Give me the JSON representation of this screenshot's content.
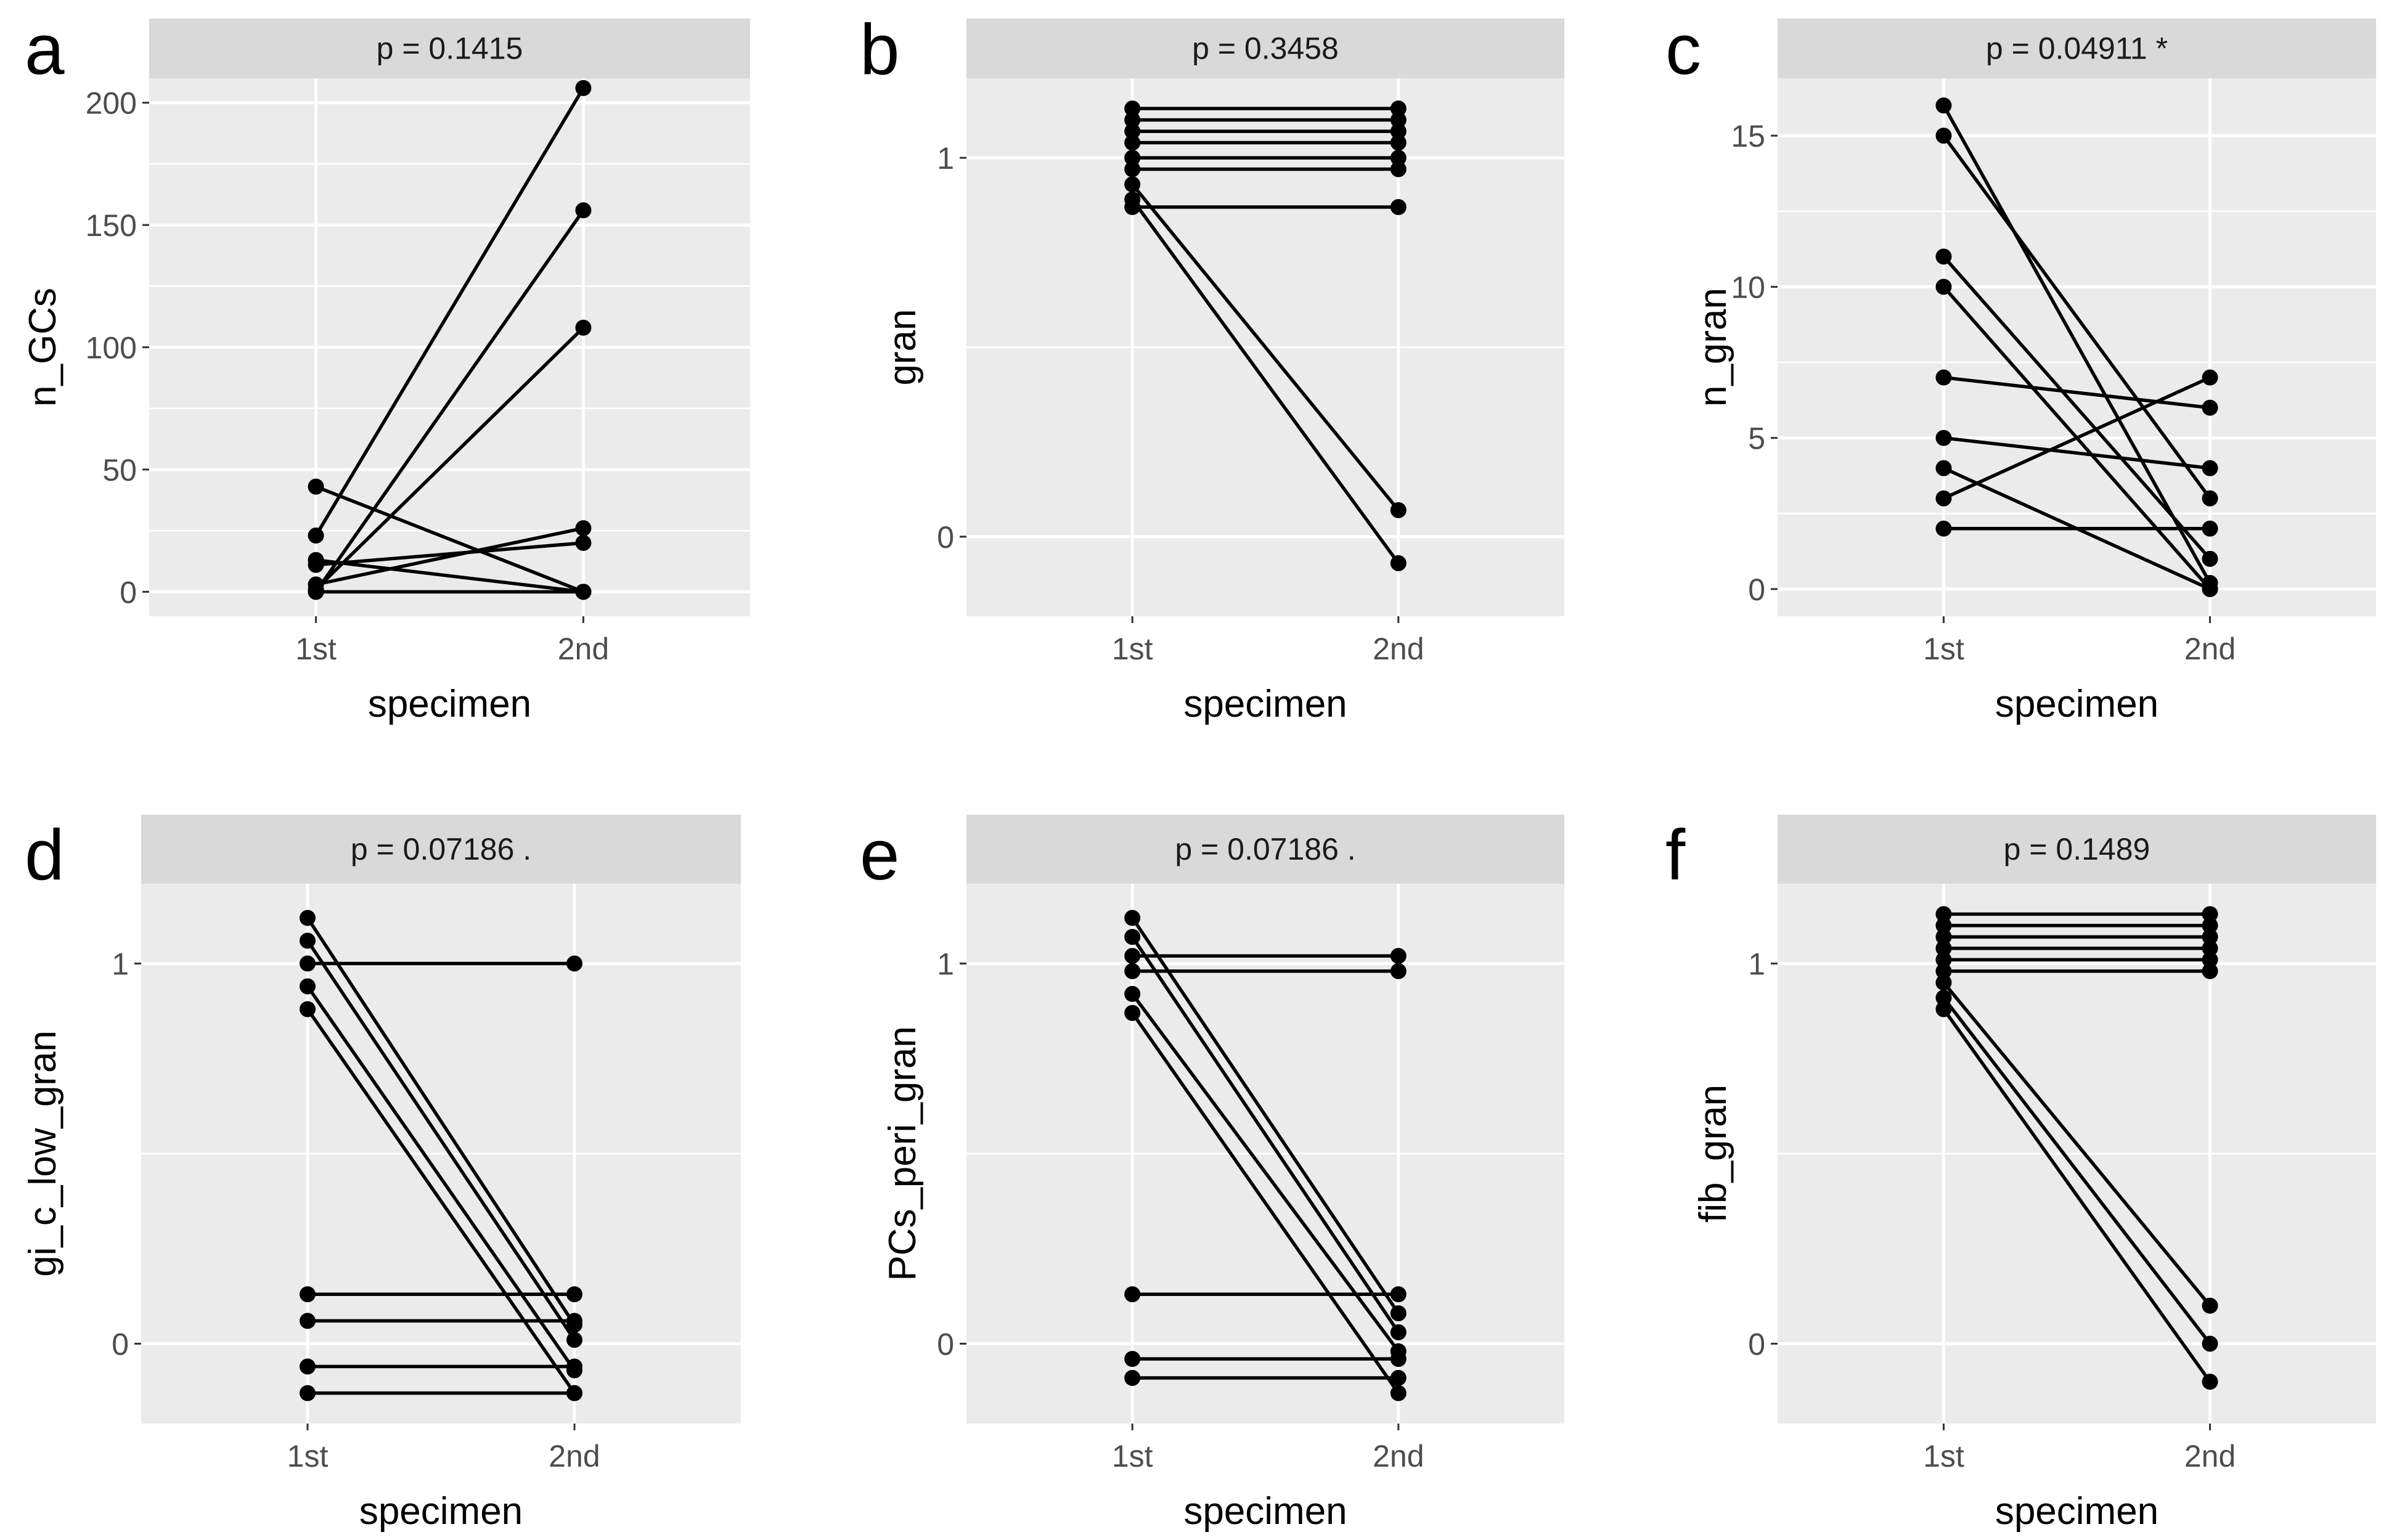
{
  "chart_data": [
    {
      "panel": "a",
      "type": "line",
      "strip": "p = 0.1415",
      "xlabel": "specimen",
      "ylabel": "n_GCs",
      "categories": [
        "1st",
        "2nd"
      ],
      "ylim": [
        -10,
        210
      ],
      "yticks": [
        0,
        50,
        100,
        150,
        200
      ],
      "yminor": [
        25,
        75,
        125,
        175
      ],
      "pairs": [
        [
          43,
          0
        ],
        [
          23,
          206
        ],
        [
          13,
          0
        ],
        [
          11,
          20
        ],
        [
          3,
          26
        ],
        [
          1,
          108
        ],
        [
          0,
          156
        ],
        [
          0,
          0
        ]
      ]
    },
    {
      "panel": "b",
      "type": "line",
      "strip": "p = 0.3458",
      "xlabel": "specimen",
      "ylabel": "gran",
      "categories": [
        "1st",
        "2nd"
      ],
      "ylim": [
        -0.21,
        1.21
      ],
      "yticks": [
        0,
        1
      ],
      "yminor": [
        0.5
      ],
      "pairs": [
        [
          1.13,
          1.13
        ],
        [
          1.1,
          1.1
        ],
        [
          1.07,
          1.07
        ],
        [
          1.04,
          1.04
        ],
        [
          1.0,
          1.0
        ],
        [
          0.97,
          0.97
        ],
        [
          0.93,
          0.07
        ],
        [
          0.89,
          -0.07
        ],
        [
          0.87,
          0.87
        ]
      ]
    },
    {
      "panel": "c",
      "type": "line",
      "strip": "p = 0.04911 *",
      "xlabel": "specimen",
      "ylabel": "n_gran",
      "categories": [
        "1st",
        "2nd"
      ],
      "ylim": [
        -0.9,
        16.9
      ],
      "yticks": [
        0,
        5,
        10,
        15
      ],
      "yminor": [
        2.5,
        7.5,
        12.5
      ],
      "pairs": [
        [
          16,
          0.2
        ],
        [
          15,
          3
        ],
        [
          11,
          1
        ],
        [
          10,
          0
        ],
        [
          7,
          6
        ],
        [
          5,
          4
        ],
        [
          4,
          0
        ],
        [
          3,
          7
        ],
        [
          2,
          2
        ]
      ]
    },
    {
      "panel": "d",
      "type": "line",
      "strip": "p = 0.07186 .",
      "xlabel": "specimen",
      "ylabel": "gi_c_low_gran",
      "categories": [
        "1st",
        "2nd"
      ],
      "ylim": [
        -0.21,
        1.21
      ],
      "yticks": [
        0,
        1
      ],
      "yminor": [
        0.5
      ],
      "pairs": [
        [
          1.12,
          0.05
        ],
        [
          1.06,
          0.01
        ],
        [
          1.0,
          1.0
        ],
        [
          0.94,
          -0.07
        ],
        [
          0.88,
          -0.13
        ],
        [
          0.13,
          0.13
        ],
        [
          0.06,
          0.06
        ],
        [
          -0.06,
          -0.06
        ],
        [
          -0.13,
          -0.13
        ]
      ]
    },
    {
      "panel": "e",
      "type": "line",
      "strip": "p = 0.07186 .",
      "xlabel": "specimen",
      "ylabel": "PCs_peri_gran",
      "categories": [
        "1st",
        "2nd"
      ],
      "ylim": [
        -0.21,
        1.21
      ],
      "yticks": [
        0,
        1
      ],
      "yminor": [
        0.5
      ],
      "pairs": [
        [
          1.12,
          0.08
        ],
        [
          1.07,
          0.03
        ],
        [
          1.02,
          1.02
        ],
        [
          0.98,
          0.98
        ],
        [
          0.92,
          -0.02
        ],
        [
          0.87,
          -0.13
        ],
        [
          0.13,
          0.13
        ],
        [
          -0.04,
          -0.04
        ],
        [
          -0.09,
          -0.09
        ]
      ]
    },
    {
      "panel": "f",
      "type": "line",
      "strip": "p = 0.1489",
      "xlabel": "specimen",
      "ylabel": "fib_gran",
      "categories": [
        "1st",
        "2nd"
      ],
      "ylim": [
        -0.21,
        1.21
      ],
      "yticks": [
        0,
        1
      ],
      "yminor": [
        0.5
      ],
      "pairs": [
        [
          1.13,
          1.13
        ],
        [
          1.1,
          1.1
        ],
        [
          1.07,
          1.07
        ],
        [
          1.04,
          1.04
        ],
        [
          1.01,
          1.01
        ],
        [
          0.98,
          0.98
        ],
        [
          0.95,
          0.1
        ],
        [
          0.91,
          0.0
        ],
        [
          0.88,
          -0.1
        ]
      ]
    }
  ]
}
